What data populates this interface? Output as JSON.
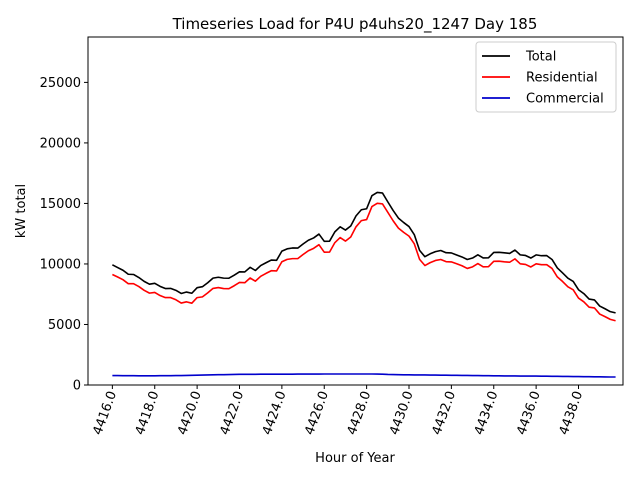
{
  "chart_data": {
    "type": "line",
    "title": "Timeseries Load for P4U p4uhs20_1247  Day 185",
    "xlabel": "Hour of Year",
    "ylabel": "kW total",
    "xlim": [
      4414.85,
      4440.1
    ],
    "ylim": [
      0,
      28750
    ],
    "xticks": [
      4416,
      4418,
      4420,
      4422,
      4424,
      4426,
      4428,
      4430,
      4432,
      4434,
      4436,
      4438
    ],
    "xtick_labels": [
      "4416.0",
      "4418.0",
      "4420.0",
      "4422.0",
      "4424.0",
      "4426.0",
      "4428.0",
      "4430.0",
      "4432.0",
      "4434.0",
      "4436.0",
      "4438.0"
    ],
    "yticks": [
      0,
      5000,
      10000,
      15000,
      20000,
      25000
    ],
    "ytick_labels": [
      "0",
      "5000",
      "10000",
      "15000",
      "20000",
      "25000"
    ],
    "legend_position": "top-right",
    "x_start": 4416.0,
    "x_step": 0.25,
    "series": [
      {
        "name": "Total",
        "color": "#000000",
        "values": [
          9930,
          9700,
          9480,
          9150,
          9130,
          8880,
          8560,
          8330,
          8400,
          8150,
          7970,
          7980,
          7820,
          7560,
          7680,
          7580,
          8040,
          8120,
          8450,
          8830,
          8900,
          8830,
          8820,
          9070,
          9350,
          9340,
          9720,
          9460,
          9870,
          10100,
          10320,
          10300,
          11060,
          11250,
          11320,
          11310,
          11650,
          11960,
          12150,
          12470,
          11870,
          11880,
          12650,
          13070,
          12800,
          13140,
          13970,
          14480,
          14560,
          15640,
          15910,
          15860,
          15130,
          14420,
          13790,
          13420,
          13090,
          12420,
          11120,
          10600,
          10840,
          11020,
          11110,
          10930,
          10910,
          10740,
          10580,
          10370,
          10490,
          10760,
          10500,
          10510,
          10950,
          10960,
          10920,
          10870,
          11150,
          10750,
          10700,
          10490,
          10750,
          10680,
          10690,
          10370,
          9670,
          9260,
          8820,
          8560,
          7870,
          7550,
          7100,
          7030,
          6520,
          6300,
          6060,
          5960
        ]
      },
      {
        "name": "Residential",
        "color": "#ff0000",
        "values": [
          9130,
          8920,
          8700,
          8370,
          8370,
          8130,
          7820,
          7590,
          7650,
          7390,
          7220,
          7220,
          7040,
          6770,
          6870,
          6760,
          7220,
          7280,
          7610,
          7980,
          8050,
          7970,
          7960,
          8200,
          8470,
          8450,
          8840,
          8580,
          8980,
          9220,
          9440,
          9420,
          10180,
          10380,
          10440,
          10440,
          10780,
          11090,
          11290,
          11590,
          10970,
          10980,
          11760,
          12180,
          11890,
          12230,
          13070,
          13580,
          13670,
          14740,
          15010,
          14960,
          14270,
          13570,
          12960,
          12610,
          12300,
          11660,
          10380,
          9870,
          10110,
          10290,
          10370,
          10190,
          10170,
          10020,
          9850,
          9630,
          9760,
          10030,
          9760,
          9770,
          10220,
          10230,
          10180,
          10140,
          10420,
          10010,
          9960,
          9750,
          10010,
          9940,
          9940,
          9630,
          8930,
          8550,
          8110,
          7860,
          7180,
          6870,
          6430,
          6370,
          5860,
          5650,
          5420,
          5310
        ]
      },
      {
        "name": "Commercial",
        "color": "#0000cc",
        "values": [
          780,
          780,
          770,
          770,
          770,
          760,
          760,
          760,
          760,
          770,
          770,
          770,
          780,
          780,
          790,
          800,
          810,
          820,
          830,
          840,
          850,
          850,
          860,
          870,
          880,
          880,
          880,
          880,
          890,
          890,
          890,
          890,
          890,
          890,
          890,
          900,
          900,
          900,
          900,
          900,
          910,
          910,
          910,
          910,
          910,
          910,
          910,
          910,
          910,
          910,
          900,
          890,
          870,
          860,
          850,
          840,
          840,
          830,
          830,
          830,
          820,
          820,
          810,
          810,
          800,
          800,
          790,
          790,
          780,
          780,
          770,
          770,
          760,
          760,
          750,
          750,
          750,
          740,
          740,
          740,
          740,
          730,
          730,
          720,
          720,
          710,
          710,
          700,
          700,
          690,
          690,
          680,
          680,
          670,
          660,
          660
        ]
      }
    ]
  }
}
